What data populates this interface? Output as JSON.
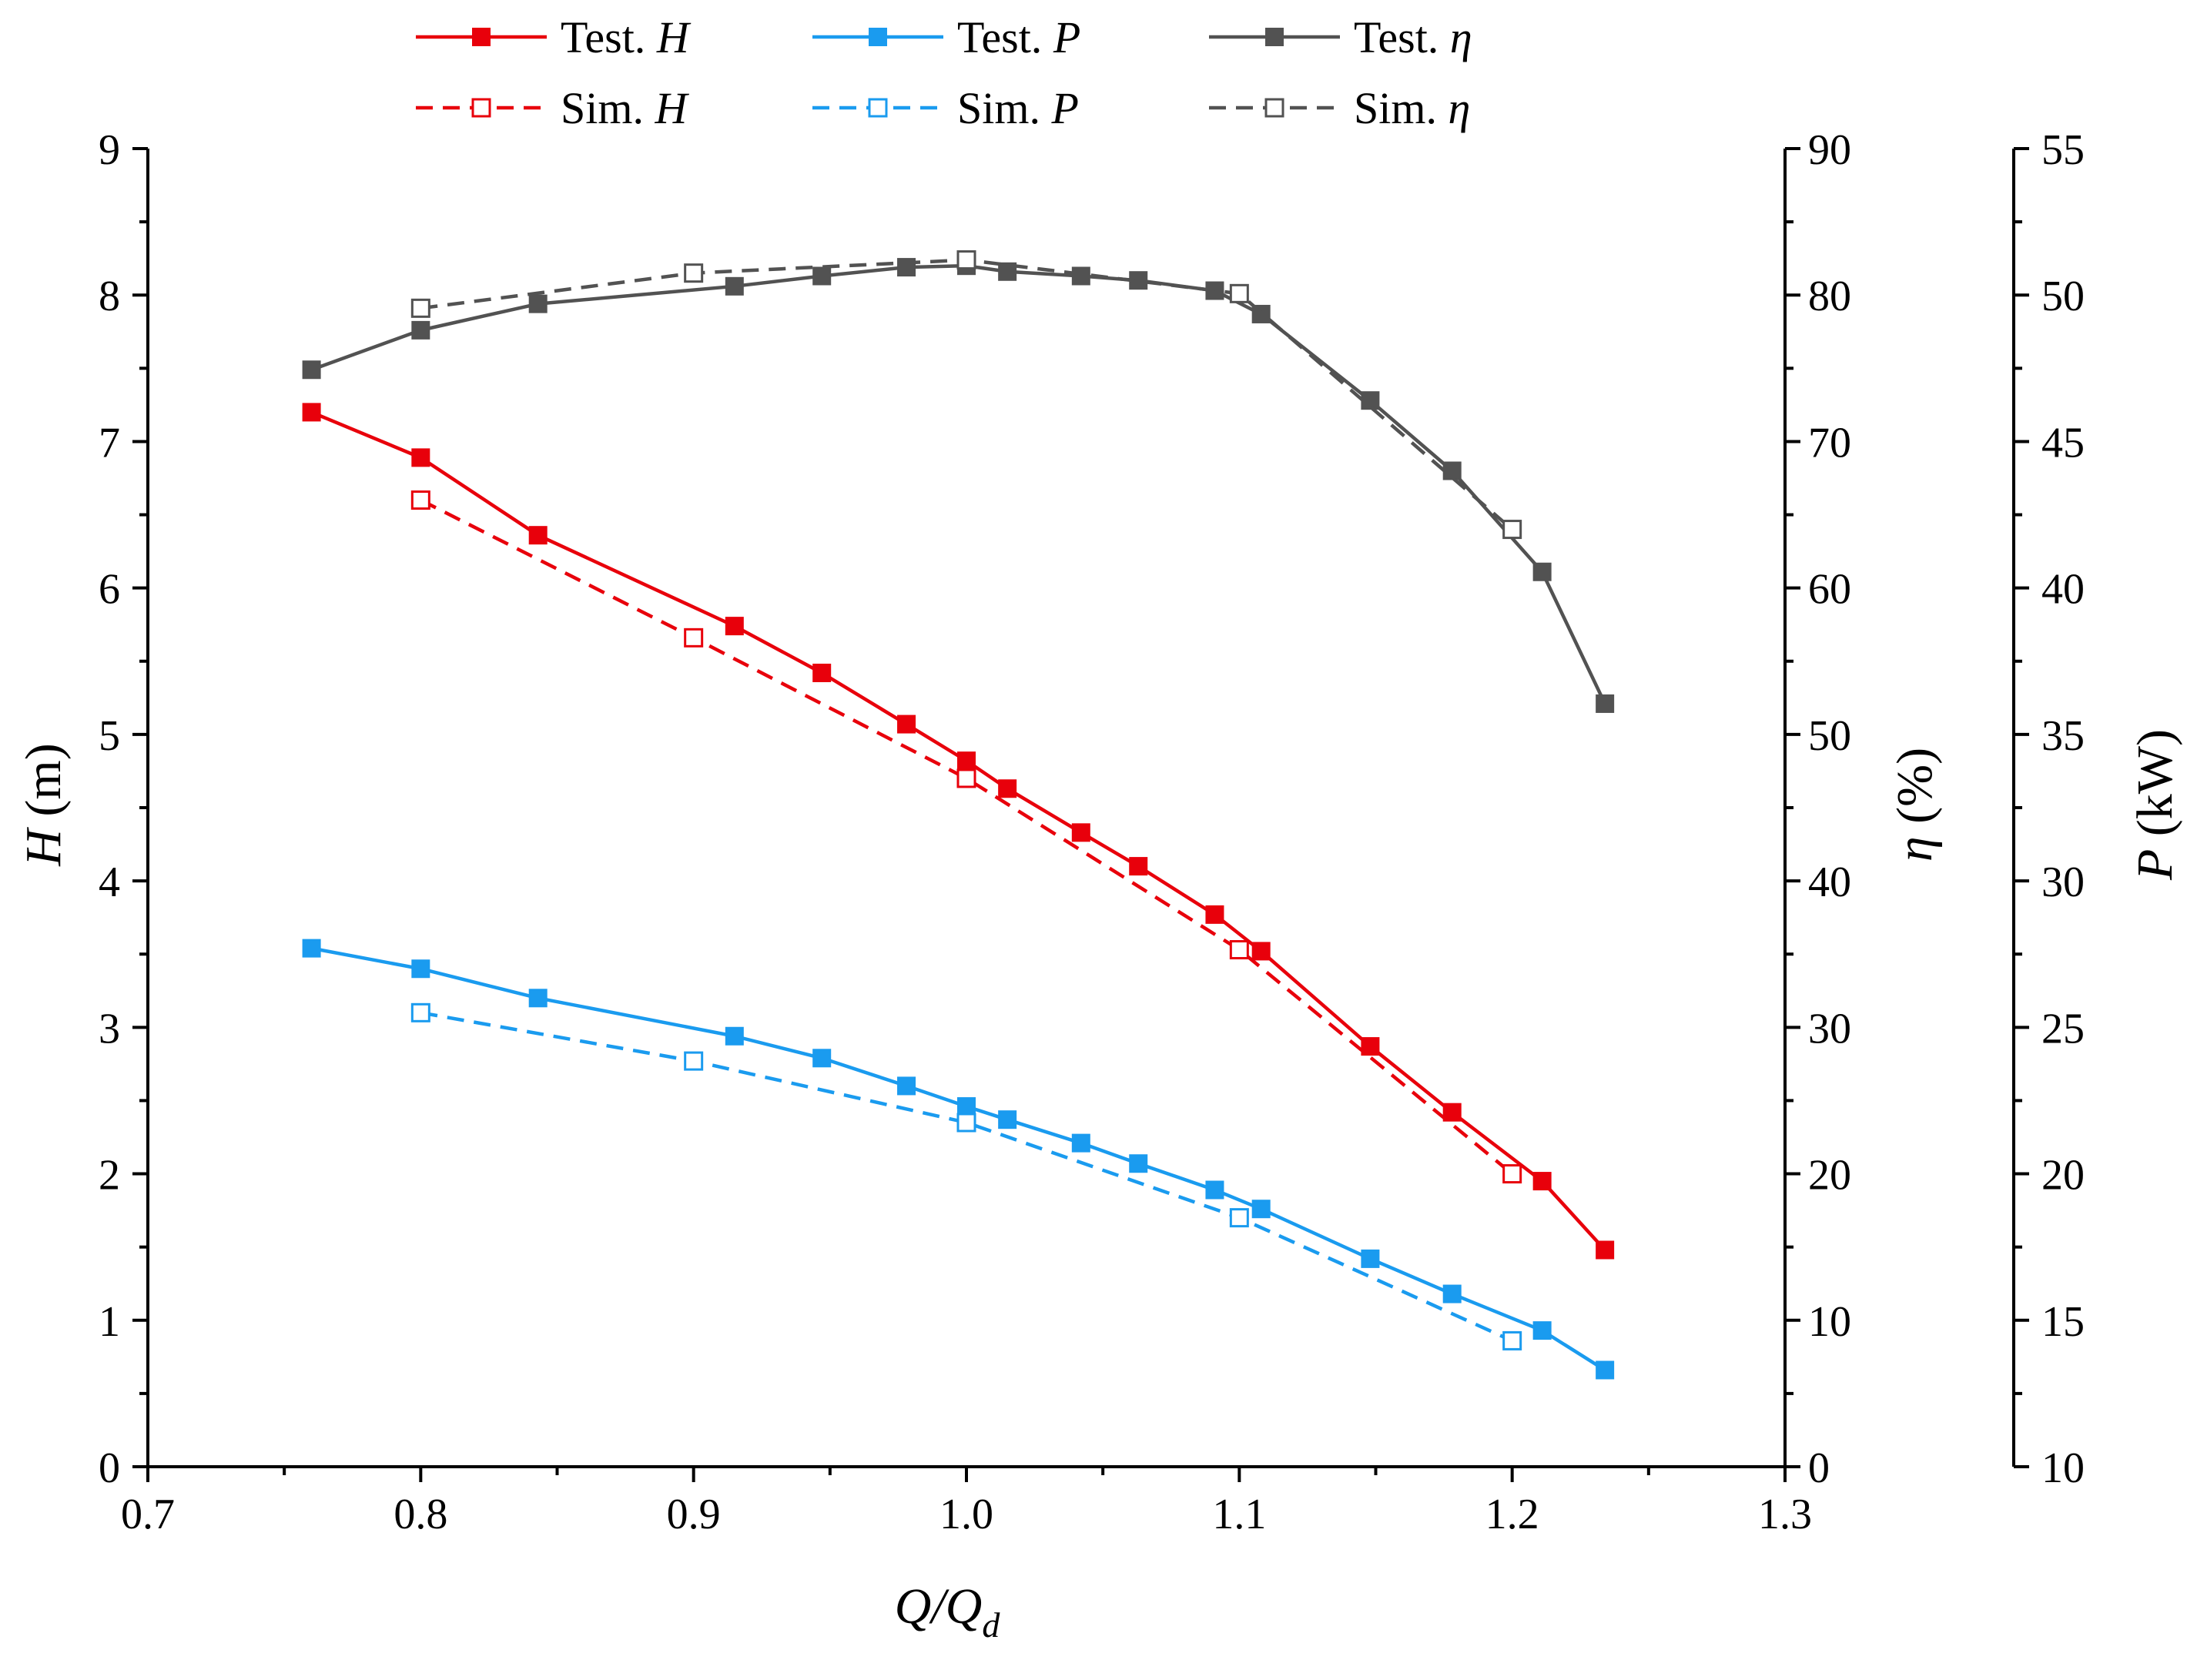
{
  "chart_data": {
    "type": "line",
    "x_axis": {
      "label_main": "Q",
      "label_sep": "/Q",
      "label_sub": "d",
      "range": [
        0.7,
        1.3
      ],
      "ticks": [
        0.7,
        0.8,
        0.9,
        1.0,
        1.1,
        1.2,
        1.3
      ],
      "tick_labels": [
        "0.7",
        "0.8",
        "0.9",
        "1.0",
        "1.1",
        "1.2",
        "1.3"
      ]
    },
    "y_axes": {
      "H": {
        "label_var": "H",
        "label_unit": " (m)",
        "range": [
          0,
          9
        ],
        "ticks": [
          0,
          1,
          2,
          3,
          4,
          5,
          6,
          7,
          8,
          9
        ],
        "tick_labels": [
          "0",
          "1",
          "2",
          "3",
          "4",
          "5",
          "6",
          "7",
          "8",
          "9"
        ]
      },
      "eta": {
        "label_var": "η",
        "label_unit": " (%)",
        "range": [
          0,
          90
        ],
        "ticks": [
          0,
          10,
          20,
          30,
          40,
          50,
          60,
          70,
          80,
          90
        ],
        "tick_labels": [
          "0",
          "10",
          "20",
          "30",
          "40",
          "50",
          "60",
          "70",
          "80",
          "90"
        ]
      },
      "P": {
        "label_var": "P",
        "label_unit": " (kW)",
        "range": [
          10,
          55
        ],
        "ticks": [
          10,
          15,
          20,
          25,
          30,
          35,
          40,
          45,
          50,
          55
        ],
        "tick_labels": [
          "10",
          "15",
          "20",
          "25",
          "30",
          "35",
          "40",
          "45",
          "50",
          "55"
        ]
      }
    },
    "series": [
      {
        "name": "Test. H",
        "name_prefix": "Test. ",
        "name_var": "H",
        "axis": "H",
        "color": "#e8000b",
        "style": "solid",
        "marker": "filled-square",
        "x": [
          0.76,
          0.8,
          0.843,
          0.915,
          0.947,
          0.978,
          1.0,
          1.015,
          1.042,
          1.063,
          1.091,
          1.108,
          1.148,
          1.178,
          1.211,
          1.234
        ],
        "y": [
          7.2,
          6.89,
          6.36,
          5.74,
          5.42,
          5.07,
          4.82,
          4.63,
          4.33,
          4.1,
          3.77,
          3.52,
          2.87,
          2.42,
          1.95,
          1.48
        ]
      },
      {
        "name": "Sim. H",
        "name_prefix": "Sim. ",
        "name_var": "H",
        "axis": "H",
        "color": "#e8000b",
        "style": "dashed",
        "marker": "open-square",
        "x": [
          0.8,
          0.9,
          1.0,
          1.1,
          1.2
        ],
        "y": [
          6.6,
          5.66,
          4.7,
          3.53,
          2.0
        ]
      },
      {
        "name": "Test. P",
        "name_prefix": "Test. ",
        "name_var": "P",
        "axis": "P",
        "color": "#1a9bef",
        "style": "solid",
        "marker": "filled-square",
        "x": [
          0.76,
          0.8,
          0.843,
          0.915,
          0.947,
          0.978,
          1.0,
          1.015,
          1.042,
          1.063,
          1.091,
          1.108,
          1.148,
          1.178,
          1.211,
          1.234
        ],
        "y": [
          27.7,
          27.0,
          26.0,
          24.7,
          23.95,
          23.0,
          22.3,
          21.85,
          21.05,
          20.35,
          19.45,
          18.8,
          17.1,
          15.9,
          14.65,
          13.3
        ]
      },
      {
        "name": "Sim. P",
        "name_prefix": "Sim. ",
        "name_var": "P",
        "axis": "P",
        "color": "#1a9bef",
        "style": "dashed",
        "marker": "open-square",
        "x": [
          0.8,
          0.9,
          1.0,
          1.1,
          1.2
        ],
        "y": [
          25.5,
          23.85,
          21.75,
          18.5,
          14.3
        ]
      },
      {
        "name": "Test. η",
        "name_prefix": "Test. ",
        "name_var": "η",
        "axis": "eta",
        "color": "#525252",
        "style": "solid",
        "marker": "filled-square",
        "x": [
          0.76,
          0.8,
          0.843,
          0.915,
          0.947,
          0.978,
          1.0,
          1.015,
          1.042,
          1.063,
          1.091,
          1.108,
          1.148,
          1.178,
          1.211,
          1.234
        ],
        "y": [
          74.9,
          77.6,
          79.4,
          80.6,
          81.3,
          81.9,
          82.0,
          81.6,
          81.3,
          81.0,
          80.3,
          78.7,
          72.8,
          68.0,
          61.1,
          52.1
        ]
      },
      {
        "name": "Sim. η",
        "name_prefix": "Sim. ",
        "name_var": "η",
        "axis": "eta",
        "color": "#525252",
        "style": "dashed",
        "marker": "open-square",
        "x": [
          0.8,
          0.9,
          1.0,
          1.1,
          1.2
        ],
        "y": [
          79.1,
          81.5,
          82.4,
          80.1,
          64.0
        ]
      }
    ],
    "legend_position": "top"
  }
}
